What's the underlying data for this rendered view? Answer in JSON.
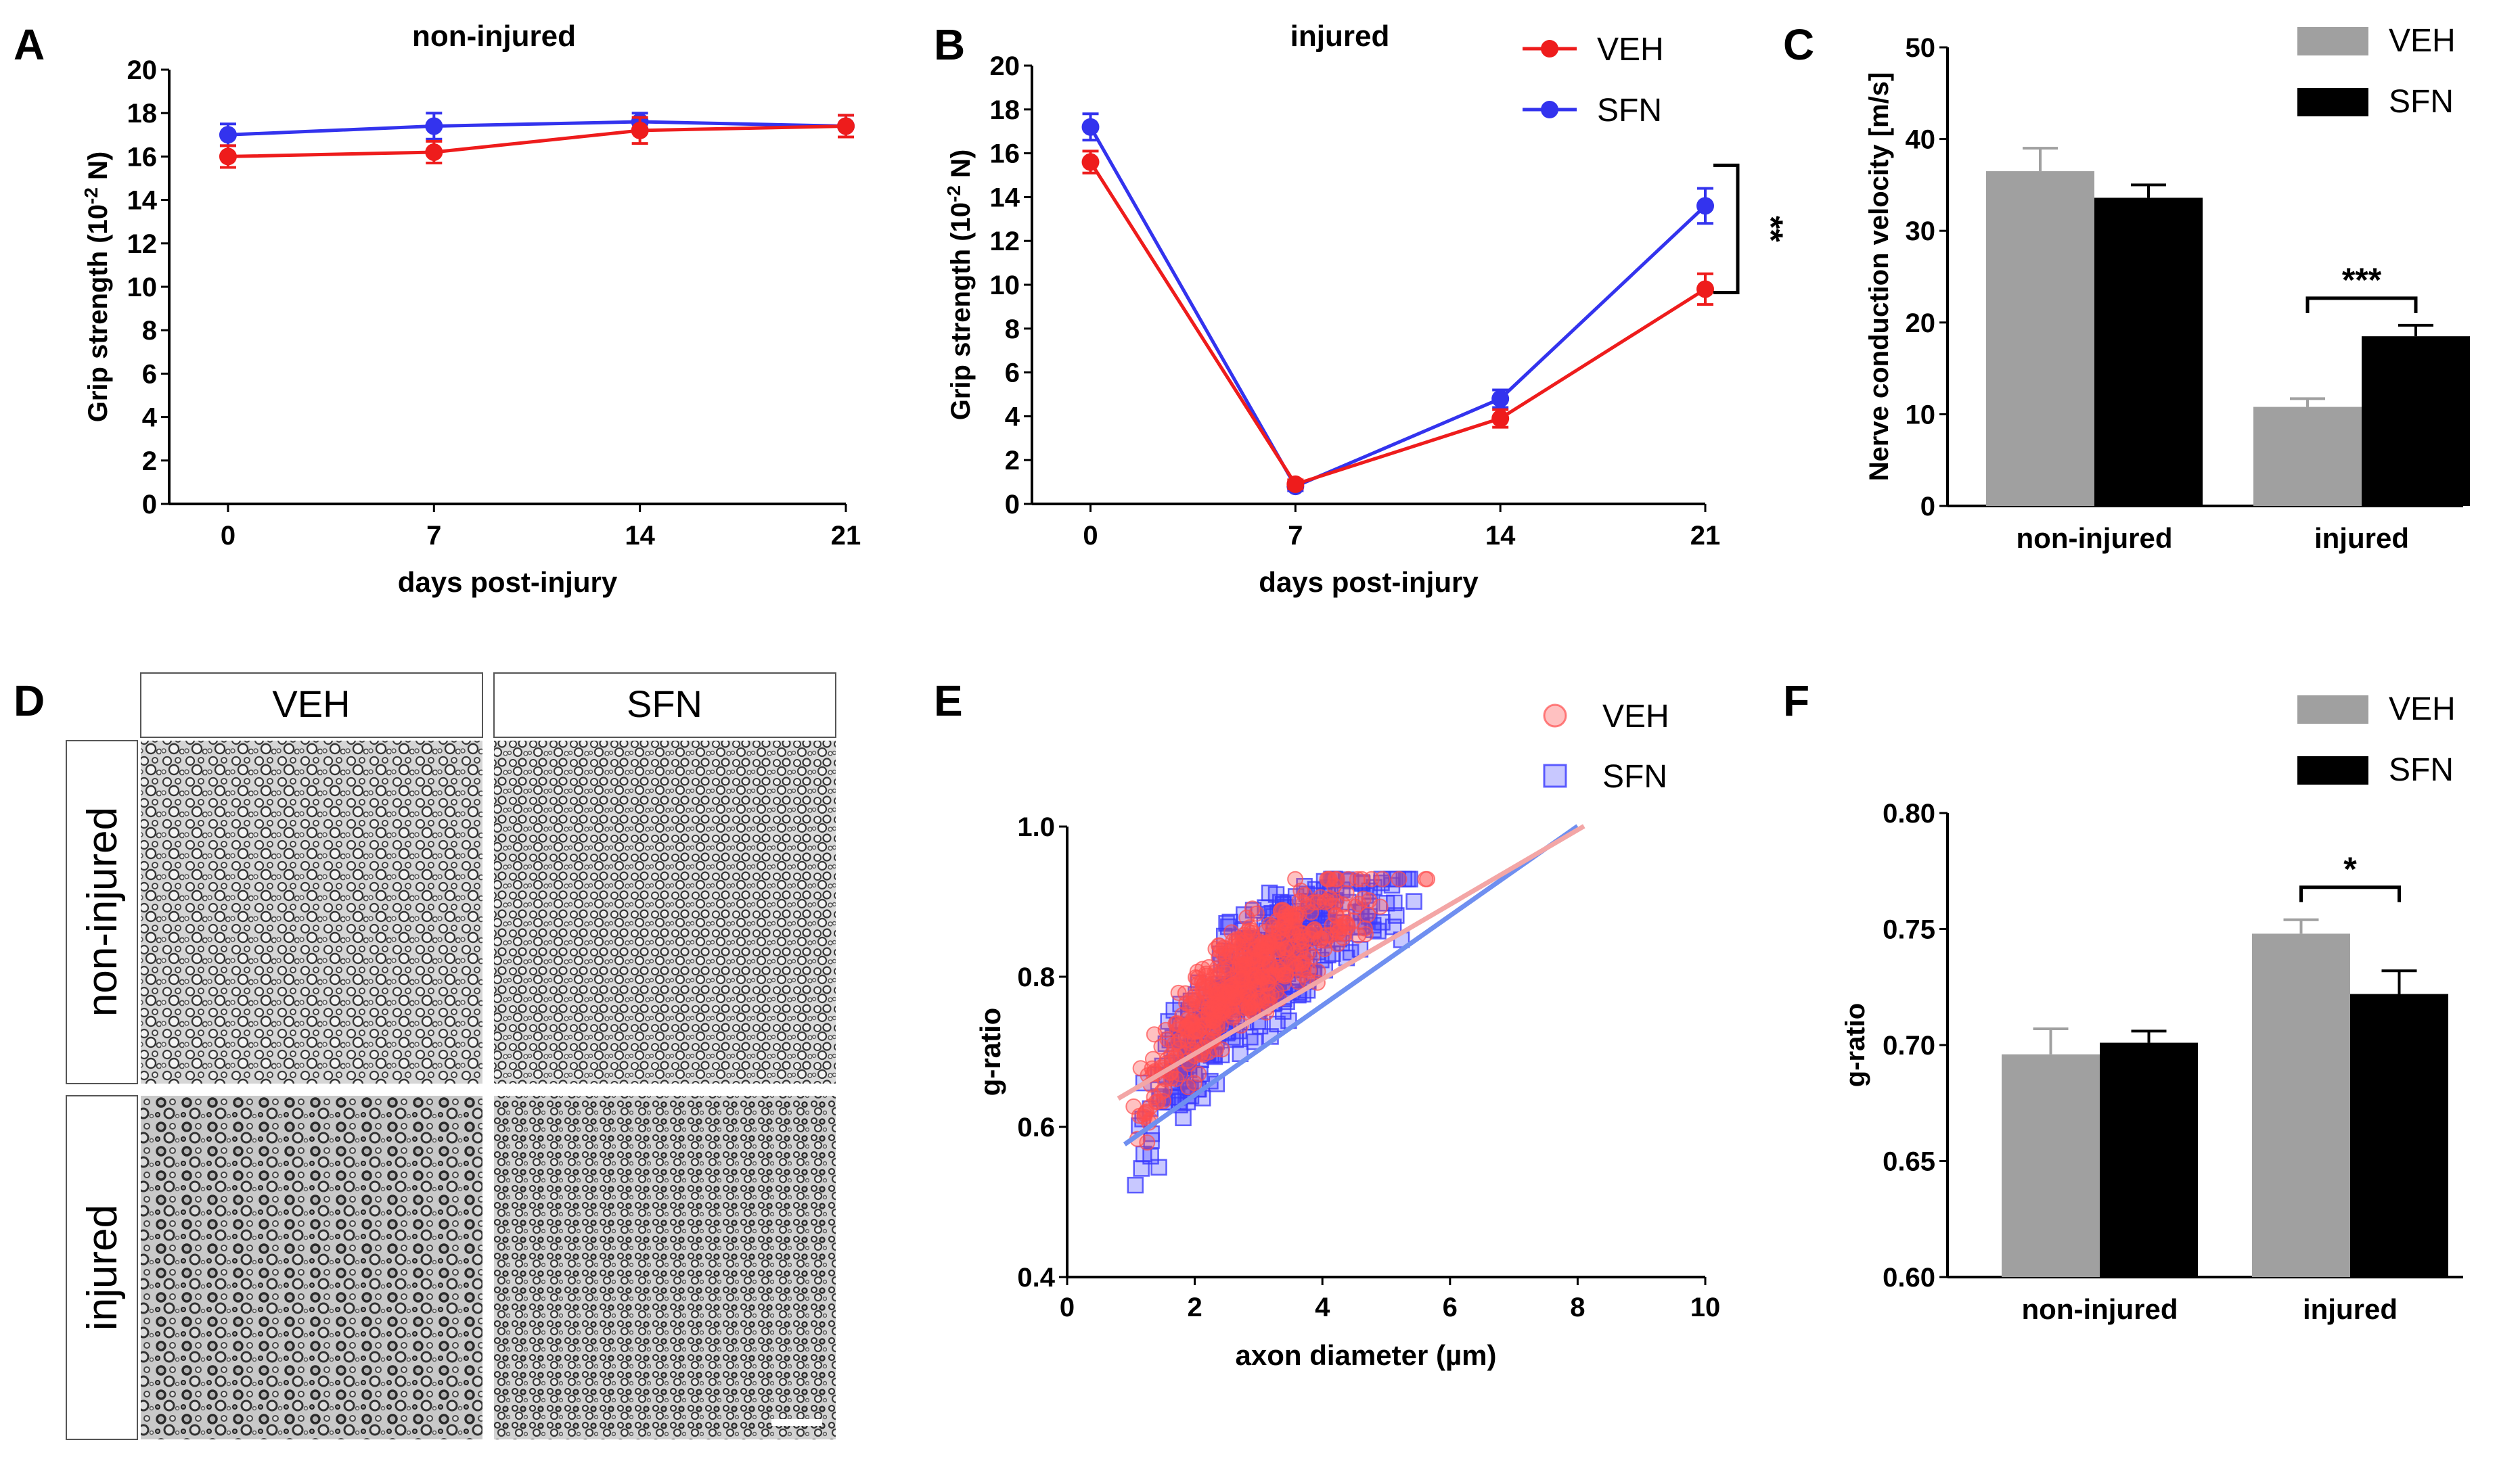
{
  "colors": {
    "veh_line": "#ee1c1c",
    "sfn_line": "#3333ee",
    "veh_bar": "#a0a0a0",
    "sfn_bar": "#000000",
    "veh_scatter": "#ff4d4d",
    "sfn_scatter": "#3b3bff",
    "veh_fit": "#f3a6a6",
    "sfn_fit": "#6f8ff0"
  },
  "panels": {
    "A": {
      "letter": "A"
    },
    "B": {
      "letter": "B"
    },
    "C": {
      "letter": "C"
    },
    "D": {
      "letter": "D",
      "col_labels": [
        "VEH",
        "SFN"
      ],
      "row_labels": [
        "non-injured",
        "injured"
      ]
    },
    "E": {
      "letter": "E"
    },
    "F": {
      "letter": "F"
    }
  },
  "chart_data": [
    {
      "id": "A",
      "type": "line",
      "title": "non-injured",
      "xlabel": "days post-injury",
      "ylabel": "Grip strength (10",
      "ylabel_sup": "-2",
      "ylabel_end": " N)",
      "x": [
        0,
        7,
        14,
        21
      ],
      "xlim": [
        -2,
        21
      ],
      "ylim": [
        0,
        20
      ],
      "ytick_step": 2,
      "series": [
        {
          "name": "VEH",
          "values": [
            16.0,
            16.2,
            17.2,
            17.4
          ],
          "errors": [
            0.5,
            0.5,
            0.6,
            0.5
          ]
        },
        {
          "name": "SFN",
          "values": [
            17.0,
            17.4,
            17.6,
            17.4
          ],
          "errors": [
            0.5,
            0.6,
            0.4,
            0.5
          ]
        }
      ]
    },
    {
      "id": "B",
      "type": "line",
      "title": "injured",
      "xlabel": "days post-injury",
      "ylabel": "Grip strength (10",
      "ylabel_sup": "-2",
      "ylabel_end": " N)",
      "x": [
        0,
        7,
        14,
        21
      ],
      "xlim": [
        -2,
        21
      ],
      "ylim": [
        0,
        20
      ],
      "ytick_step": 2,
      "legend": [
        "VEH",
        "SFN"
      ],
      "significance": "**",
      "series": [
        {
          "name": "VEH",
          "values": [
            15.6,
            0.9,
            3.9,
            9.8
          ],
          "errors": [
            0.5,
            0.2,
            0.4,
            0.7
          ]
        },
        {
          "name": "SFN",
          "values": [
            17.2,
            0.8,
            4.8,
            13.6
          ],
          "errors": [
            0.6,
            0.2,
            0.4,
            0.8
          ]
        }
      ]
    },
    {
      "id": "C",
      "type": "bar",
      "ylabel": "Nerve conduction velocity [m/s]",
      "categories": [
        "non-injured",
        "injured"
      ],
      "ylim": [
        0,
        50
      ],
      "ytick_step": 10,
      "legend": [
        "VEH",
        "SFN"
      ],
      "significance": "***",
      "series": [
        {
          "name": "VEH",
          "values": [
            36.5,
            10.8
          ],
          "errors": [
            2.5,
            0.9
          ]
        },
        {
          "name": "SFN",
          "values": [
            33.6,
            18.5
          ],
          "errors": [
            1.4,
            1.2
          ]
        }
      ]
    },
    {
      "id": "E",
      "type": "scatter",
      "xlabel": "axon diameter (µm)",
      "ylabel": "g-ratio",
      "xlim": [
        0,
        10
      ],
      "ylim": [
        0.4,
        1.0
      ],
      "xticks": [
        0,
        2,
        4,
        6,
        8,
        10
      ],
      "yticks": [
        "0.4",
        "0.6",
        "0.8",
        "1.0"
      ],
      "legend": [
        "VEH",
        "SFN"
      ],
      "series": [
        {
          "name": "VEH",
          "fit": {
            "slope": 0.0497,
            "intercept": 0.598,
            "x_range": [
              0.8,
              8.1
            ]
          }
        },
        {
          "name": "SFN",
          "fit": {
            "slope": 0.0597,
            "intercept": 0.523,
            "x_range": [
              0.9,
              8.0
            ]
          }
        }
      ]
    },
    {
      "id": "F",
      "type": "bar",
      "ylabel": "g-ratio",
      "categories": [
        "non-injured",
        "injured"
      ],
      "ylim": [
        0.6,
        0.8
      ],
      "yticks": [
        "0.60",
        "0.65",
        "0.70",
        "0.75",
        "0.80"
      ],
      "legend": [
        "VEH",
        "SFN"
      ],
      "significance": "*",
      "series": [
        {
          "name": "VEH",
          "values": [
            0.696,
            0.748
          ],
          "errors": [
            0.011,
            0.006
          ]
        },
        {
          "name": "SFN",
          "values": [
            0.701,
            0.722
          ],
          "errors": [
            0.005,
            0.01
          ]
        }
      ]
    }
  ]
}
